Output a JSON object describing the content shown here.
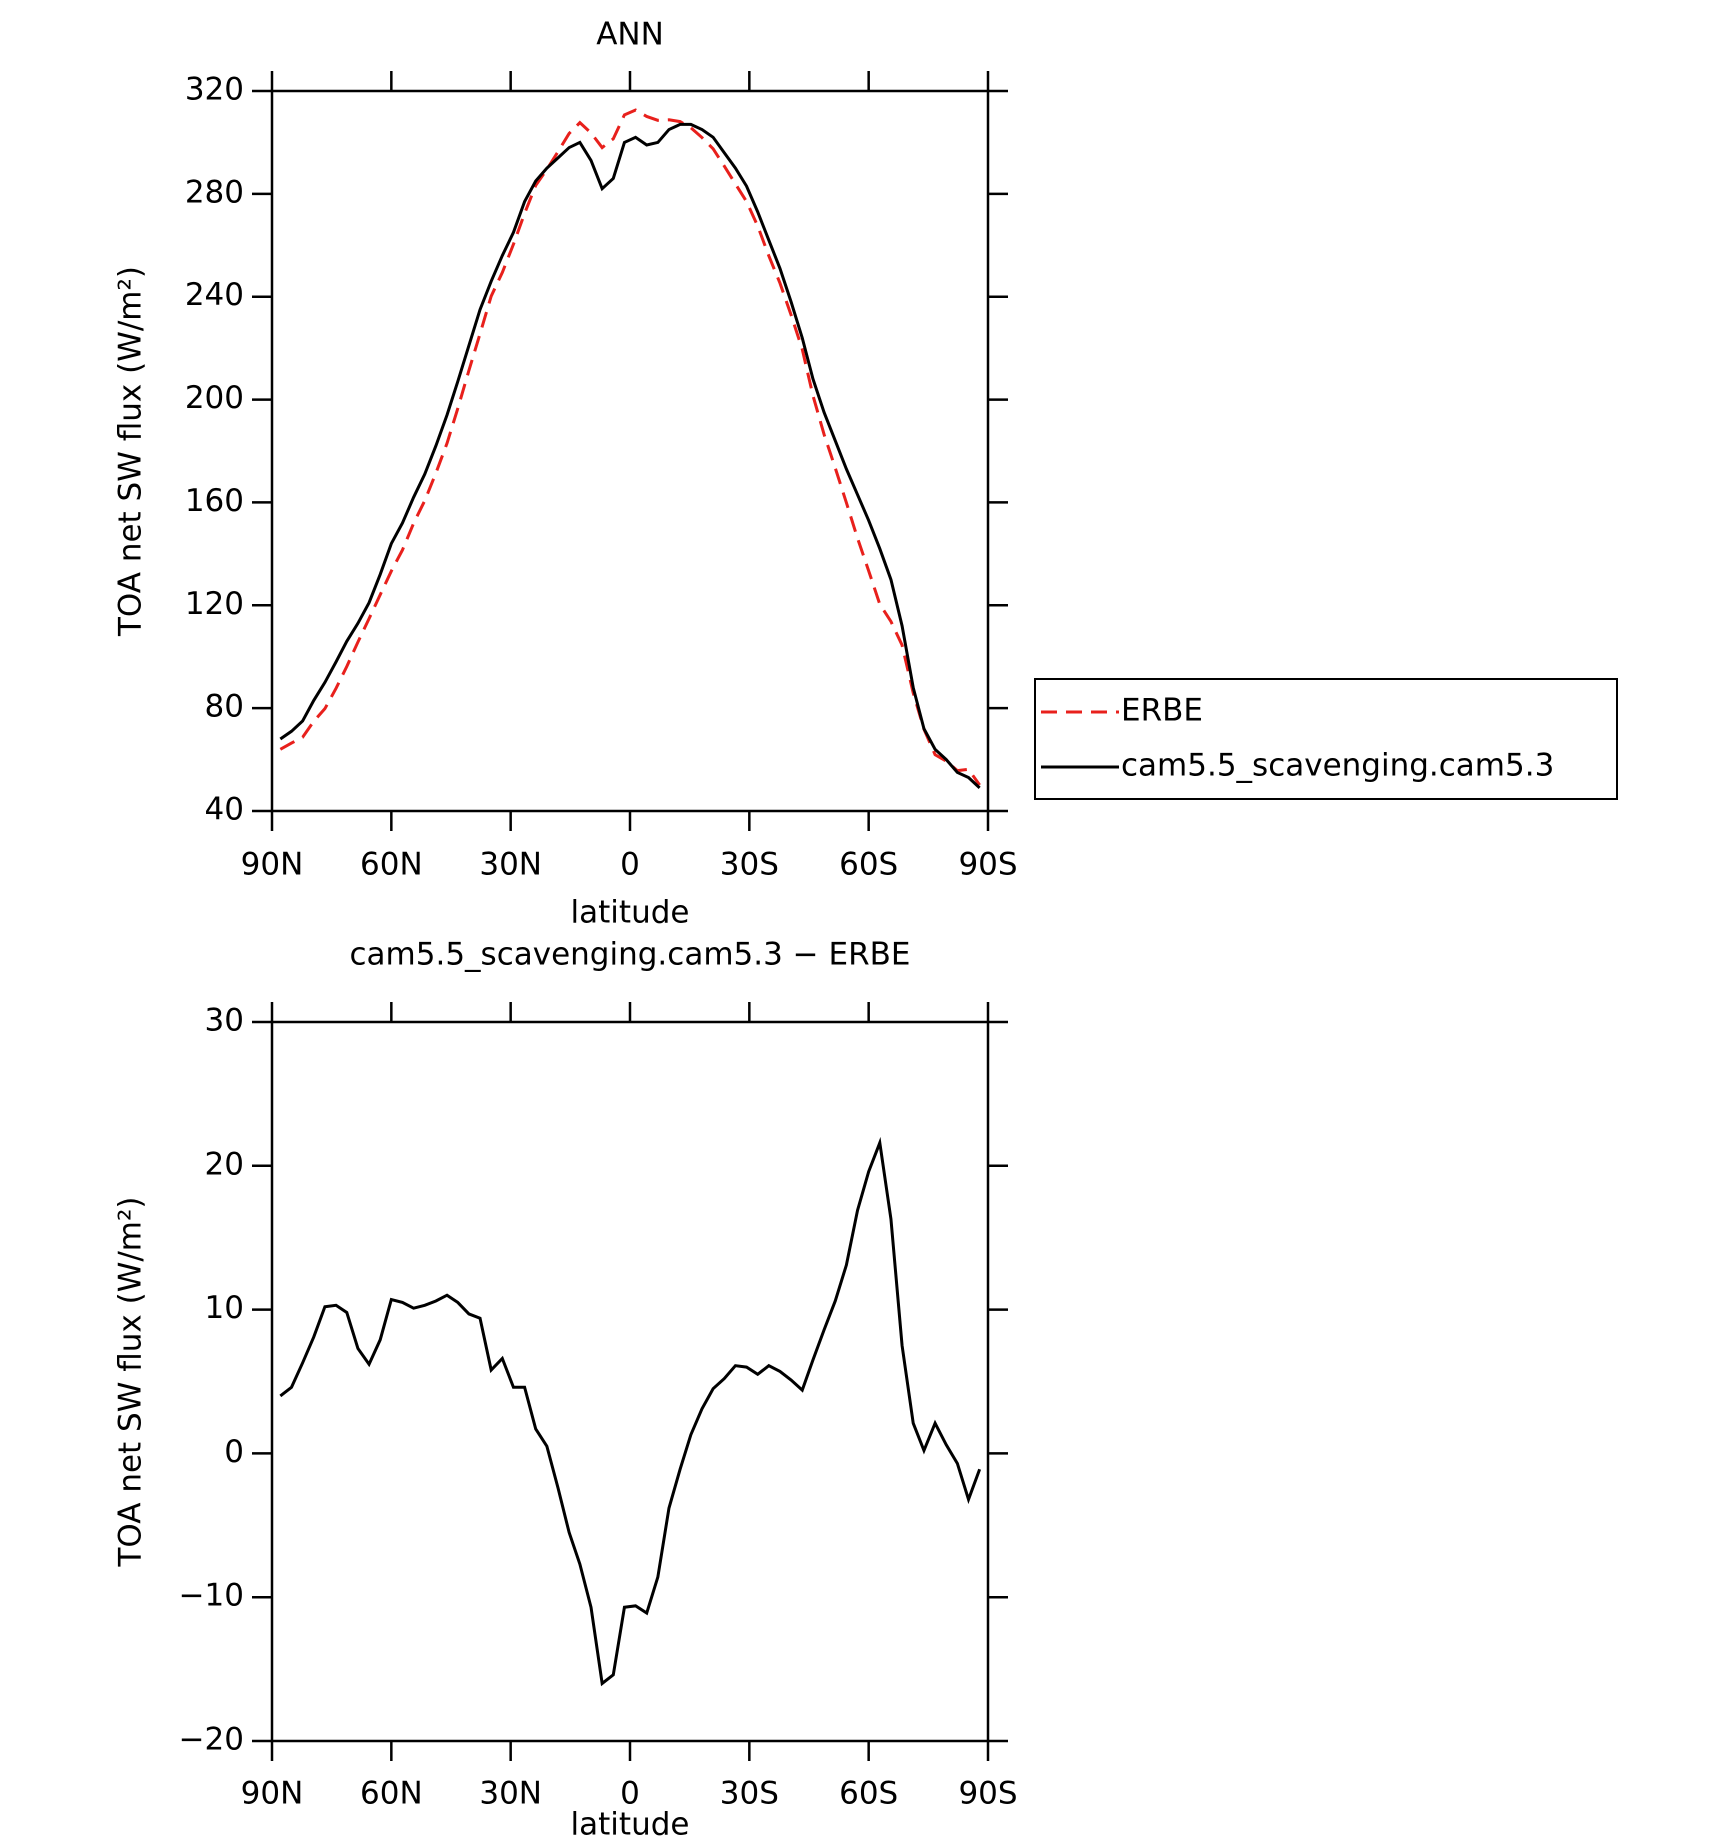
{
  "chart_data": [
    {
      "type": "line",
      "title": "ANN",
      "xlabel": "latitude",
      "ylabel": "TOA net SW flux (W/m²)",
      "x": [
        87.9,
        85.1,
        82.3,
        79.5,
        76.7,
        73.9,
        71.2,
        68.4,
        65.6,
        62.8,
        60.0,
        57.2,
        54.4,
        51.6,
        48.8,
        46.0,
        43.3,
        40.5,
        37.7,
        34.9,
        32.1,
        29.3,
        26.5,
        23.7,
        20.9,
        18.1,
        15.3,
        12.6,
        9.8,
        7.0,
        4.2,
        1.4,
        -1.4,
        -4.2,
        -7.0,
        -9.8,
        -12.6,
        -15.3,
        -18.1,
        -20.9,
        -23.7,
        -26.5,
        -29.3,
        -32.1,
        -34.9,
        -37.7,
        -40.5,
        -43.3,
        -46.0,
        -48.8,
        -51.6,
        -54.4,
        -57.2,
        -60.0,
        -62.8,
        -65.6,
        -68.4,
        -71.2,
        -73.9,
        -76.7,
        -79.5,
        -82.3,
        -85.1,
        -87.9
      ],
      "series": [
        {
          "name": "ERBE",
          "color": "#e8201c",
          "line_style": "dashed",
          "values": [
            64.0,
            66.4,
            68.7,
            74.9,
            79.8,
            87.7,
            96.2,
            105.7,
            114.8,
            124.1,
            133.3,
            141.5,
            151.9,
            160.7,
            171.4,
            183,
            196.5,
            211.3,
            225.6,
            240.2,
            249.4,
            260.4,
            272.4,
            283.3,
            289.5,
            296.4,
            303.5,
            307.7,
            303.7,
            298,
            301.4,
            310.7,
            312.6,
            310.1,
            308.6,
            308.8,
            308.1,
            305.7,
            301.9,
            297.5,
            290.8,
            283.9,
            277,
            267.5,
            255.9,
            245.3,
            232.9,
            219.6,
            201.5,
            186.4,
            173.4,
            159.9,
            146.1,
            133.4,
            120.4,
            113.7,
            104.5,
            85.9,
            71.8,
            61.9,
            59.4,
            55.7,
            56.2,
            50.1
          ]
        },
        {
          "name": "cam5.5_scavenging.cam5.3",
          "color": "#000000",
          "line_style": "solid",
          "values": [
            68,
            71,
            75,
            83,
            90,
            98,
            106,
            113,
            121,
            132,
            144,
            152,
            162,
            171,
            182,
            194,
            207,
            221,
            235,
            246,
            256,
            265,
            277,
            285,
            290,
            294,
            298,
            300,
            293,
            282,
            286,
            300,
            302,
            299,
            300,
            305,
            307,
            307,
            305,
            302,
            296,
            290,
            283,
            273,
            262,
            251,
            238,
            224,
            208,
            195,
            184,
            173,
            163,
            153,
            142,
            130,
            112,
            88,
            72,
            64,
            60,
            55,
            53,
            49
          ]
        }
      ],
      "xlim": [
        90,
        -90
      ],
      "xticks": [
        {
          "value": 90,
          "label": "90N"
        },
        {
          "value": 60,
          "label": "60N"
        },
        {
          "value": 30,
          "label": "30N"
        },
        0,
        {
          "value": -30,
          "label": "30S"
        },
        {
          "value": -60,
          "label": "60S"
        },
        {
          "value": -90,
          "label": "90S"
        }
      ],
      "ylim": [
        40,
        320
      ],
      "yticks": [
        40,
        80,
        120,
        160,
        200,
        240,
        280,
        320
      ],
      "legend": "outside right"
    },
    {
      "type": "line",
      "title": "cam5.5_scavenging.cam5.3 − ERBE",
      "xlabel": "latitude",
      "ylabel": "TOA net SW flux (W/m²)",
      "x": [
        87.9,
        85.1,
        82.3,
        79.5,
        76.7,
        73.9,
        71.2,
        68.4,
        65.6,
        62.8,
        60.0,
        57.2,
        54.4,
        51.6,
        48.8,
        46.0,
        43.3,
        40.5,
        37.7,
        34.9,
        32.1,
        29.3,
        26.5,
        23.7,
        20.9,
        18.1,
        15.3,
        12.6,
        9.8,
        7.0,
        4.2,
        1.4,
        -1.4,
        -4.2,
        -7.0,
        -9.8,
        -12.6,
        -15.3,
        -18.1,
        -20.9,
        -23.7,
        -26.5,
        -29.3,
        -32.1,
        -34.9,
        -37.7,
        -40.5,
        -43.3,
        -46.0,
        -48.8,
        -51.6,
        -54.4,
        -57.2,
        -60.0,
        -62.8,
        -65.6,
        -68.4,
        -71.2,
        -73.9,
        -76.7,
        -79.5,
        -82.3,
        -85.1,
        -87.9
      ],
      "series": [
        {
          "color": "#000000",
          "line_style": "solid",
          "values": [
            4.0,
            4.6,
            6.3,
            8.1,
            10.2,
            10.3,
            9.8,
            7.3,
            6.2,
            7.9,
            10.7,
            10.5,
            10.1,
            10.3,
            10.6,
            11.0,
            10.5,
            9.7,
            9.4,
            5.8,
            6.6,
            4.6,
            4.6,
            1.7,
            0.5,
            -2.4,
            -5.5,
            -7.7,
            -10.7,
            -16.0,
            -15.4,
            -10.7,
            -10.6,
            -11.1,
            -8.6,
            -3.8,
            -1.1,
            1.3,
            3.1,
            4.5,
            5.2,
            6.1,
            6.0,
            5.5,
            6.1,
            5.7,
            5.1,
            4.4,
            6.5,
            8.6,
            10.6,
            13.1,
            16.9,
            19.6,
            21.6,
            16.3,
            7.5,
            2.1,
            0.2,
            2.1,
            0.6,
            -0.7,
            -3.2,
            -1.1
          ]
        }
      ],
      "xlim": [
        90,
        -90
      ],
      "xticks": [
        {
          "value": 90,
          "label": "90N"
        },
        {
          "value": 60,
          "label": "60N"
        },
        {
          "value": 30,
          "label": "30N"
        },
        0,
        {
          "value": -30,
          "label": "30S"
        },
        {
          "value": -60,
          "label": "60S"
        },
        {
          "value": -90,
          "label": "90S"
        }
      ],
      "ylim": [
        -20,
        30
      ],
      "yticks": [
        {
          "value": -20,
          "label": "−20"
        },
        {
          "value": -10,
          "label": "−10"
        },
        0,
        10,
        20,
        30
      ]
    }
  ]
}
